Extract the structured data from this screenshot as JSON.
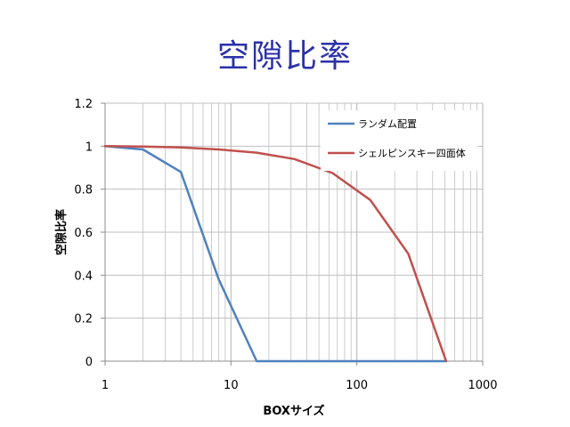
{
  "slide": {
    "title": "空隙比率"
  },
  "colors": {
    "title": "#2b31a8",
    "grid": "#bfbfbf",
    "axis": "#8c8c8c"
  },
  "chart_data": {
    "type": "line",
    "title": "",
    "xlabel": "BOXサイズ",
    "ylabel": "空隙比率",
    "x_scale": "log",
    "xlim": [
      1,
      1000
    ],
    "ylim": [
      0,
      1.2
    ],
    "x_ticks": [
      "1",
      "10",
      "100",
      "1000"
    ],
    "y_ticks": [
      "0",
      "0.2",
      "0.4",
      "0.6",
      "0.8",
      "1",
      "1.2"
    ],
    "grid": true,
    "legend_position": "top-right",
    "series": [
      {
        "name": "ランダム配置",
        "color": "#4f81bd",
        "x": [
          1,
          2,
          4,
          8,
          16,
          32,
          64,
          128,
          256,
          512
        ],
        "y": [
          1.0,
          0.985,
          0.88,
          0.38,
          0.0,
          0.0,
          0.0,
          0.0,
          0.0,
          0.0
        ]
      },
      {
        "name": "シェルピンスキー四面体",
        "color": "#c0504d",
        "x": [
          1,
          2,
          4,
          8,
          16,
          32,
          64,
          128,
          256,
          512
        ],
        "y": [
          1.0,
          0.998,
          0.994,
          0.985,
          0.97,
          0.94,
          0.875,
          0.75,
          0.5,
          0.0
        ]
      }
    ]
  }
}
